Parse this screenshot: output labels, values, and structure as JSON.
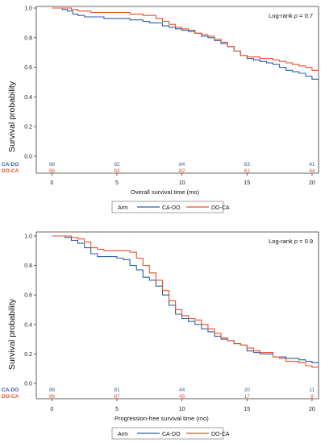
{
  "colors": {
    "ca_do": "#2e5fa8",
    "do_ca": "#e8502a"
  },
  "legend": {
    "title": "Arm",
    "items": [
      "CA-DO",
      "DO-CA"
    ]
  },
  "chart_data": [
    {
      "type": "line",
      "ylabel": "Survival probability",
      "xlabel": "Overall survival time (mo)",
      "annotation_prefix": "Log-rank",
      "annotation_p": "p",
      "annotation_value": " = 0.7",
      "xlim": [
        -1.2,
        20.5
      ],
      "ylim": [
        0,
        1.0
      ],
      "x_ticks": [
        "0",
        "5",
        "10",
        "15",
        "20"
      ],
      "x_tick_values": [
        0,
        5,
        10,
        15,
        20
      ],
      "y_ticks": [
        "0.0",
        "0.2",
        "0.4",
        "0.6",
        "0.8",
        "1.0"
      ],
      "y_tick_values": [
        0,
        0.2,
        0.4,
        0.6,
        0.8,
        1.0
      ],
      "risk_table": [
        {
          "label": "CA-DO",
          "values": [
            "98",
            "92",
            "84",
            "63",
            "41"
          ]
        },
        {
          "label": "DO-CA",
          "values": [
            "96",
            "93",
            "82",
            "61",
            "44"
          ]
        }
      ],
      "series": [
        {
          "name": "CA-DO",
          "x": [
            0,
            0.8,
            1.2,
            1.6,
            2.0,
            2.5,
            3.0,
            4.0,
            5.0,
            6.0,
            7.0,
            7.5,
            8.0,
            8.5,
            9.0,
            9.5,
            10.0,
            10.5,
            11.0,
            11.5,
            12.0,
            12.5,
            13.0,
            13.5,
            14.0,
            14.5,
            15.0,
            15.5,
            16.0,
            16.5,
            17.0,
            17.5,
            18.0,
            18.5,
            19.0,
            19.5,
            20.0,
            20.5
          ],
          "y": [
            1.0,
            0.99,
            0.98,
            0.96,
            0.95,
            0.94,
            0.94,
            0.93,
            0.93,
            0.92,
            0.91,
            0.9,
            0.9,
            0.88,
            0.87,
            0.86,
            0.85,
            0.85,
            0.83,
            0.81,
            0.8,
            0.78,
            0.76,
            0.74,
            0.71,
            0.68,
            0.66,
            0.65,
            0.64,
            0.63,
            0.62,
            0.6,
            0.58,
            0.57,
            0.56,
            0.54,
            0.52,
            0.51
          ]
        },
        {
          "name": "DO-CA",
          "x": [
            0,
            1.0,
            1.5,
            2.0,
            3.0,
            4.0,
            5.0,
            6.0,
            7.0,
            8.0,
            8.5,
            9.0,
            9.5,
            10.0,
            10.5,
            11.0,
            11.5,
            12.0,
            12.5,
            13.0,
            13.5,
            14.0,
            14.5,
            15.0,
            15.5,
            16.0,
            16.5,
            17.0,
            17.5,
            18.0,
            18.5,
            19.0,
            19.5,
            20.0,
            20.5
          ],
          "y": [
            1.0,
            1.0,
            0.99,
            0.98,
            0.97,
            0.97,
            0.97,
            0.96,
            0.95,
            0.93,
            0.91,
            0.89,
            0.87,
            0.86,
            0.84,
            0.83,
            0.82,
            0.81,
            0.79,
            0.77,
            0.74,
            0.71,
            0.68,
            0.67,
            0.67,
            0.66,
            0.66,
            0.65,
            0.64,
            0.63,
            0.62,
            0.61,
            0.6,
            0.58,
            0.56
          ]
        }
      ]
    },
    {
      "type": "line",
      "ylabel": "Survival probability",
      "xlabel": "Progression-free survival time (mo)",
      "annotation_prefix": "Log-rank",
      "annotation_p": "p",
      "annotation_value": " = 0.9",
      "xlim": [
        -1.2,
        20.5
      ],
      "ylim": [
        0,
        1.0
      ],
      "x_ticks": [
        "0",
        "5",
        "10",
        "15",
        "20"
      ],
      "x_tick_values": [
        0,
        5,
        10,
        15,
        20
      ],
      "y_ticks": [
        "0.0",
        "0.2",
        "0.4",
        "0.6",
        "0.8",
        "1.0"
      ],
      "y_tick_values": [
        0,
        0.2,
        0.4,
        0.6,
        0.8,
        1.0
      ],
      "risk_table": [
        {
          "label": "CA-DO",
          "values": [
            "98",
            "81",
            "44",
            "20",
            "11"
          ]
        },
        {
          "label": "DO-CA",
          "values": [
            "96",
            "87",
            "45",
            "17",
            "8"
          ]
        }
      ],
      "series": [
        {
          "name": "CA-DO",
          "x": [
            0,
            1.0,
            1.5,
            2.0,
            2.5,
            3.0,
            3.5,
            4.0,
            5.0,
            5.5,
            6.0,
            6.5,
            7.0,
            7.5,
            8.0,
            8.5,
            9.0,
            9.5,
            10.0,
            10.5,
            11.0,
            11.5,
            12.0,
            12.5,
            13.0,
            13.5,
            14.0,
            14.5,
            15.0,
            15.5,
            16.0,
            17.0,
            17.5,
            18.0,
            19.0,
            19.5,
            20.0,
            20.5
          ],
          "y": [
            1.0,
            0.99,
            0.97,
            0.95,
            0.92,
            0.88,
            0.86,
            0.86,
            0.85,
            0.84,
            0.8,
            0.77,
            0.72,
            0.7,
            0.66,
            0.6,
            0.53,
            0.47,
            0.44,
            0.42,
            0.4,
            0.37,
            0.35,
            0.32,
            0.3,
            0.29,
            0.27,
            0.26,
            0.22,
            0.21,
            0.2,
            0.18,
            0.18,
            0.17,
            0.16,
            0.15,
            0.14,
            0.13
          ]
        },
        {
          "name": "DO-CA",
          "x": [
            0,
            1.0,
            1.5,
            2.0,
            2.5,
            3.0,
            3.5,
            4.0,
            5.0,
            6.0,
            6.5,
            7.0,
            7.5,
            8.0,
            8.5,
            9.0,
            9.5,
            10.0,
            10.5,
            11.0,
            11.5,
            12.0,
            12.5,
            13.0,
            13.5,
            14.0,
            14.5,
            15.0,
            15.5,
            16.0,
            17.0,
            17.5,
            18.0,
            19.0,
            19.5,
            20.0,
            20.5
          ],
          "y": [
            1.0,
            1.0,
            0.99,
            0.98,
            0.96,
            0.92,
            0.91,
            0.9,
            0.9,
            0.89,
            0.85,
            0.8,
            0.75,
            0.7,
            0.63,
            0.56,
            0.5,
            0.46,
            0.44,
            0.43,
            0.4,
            0.37,
            0.34,
            0.31,
            0.29,
            0.27,
            0.26,
            0.24,
            0.22,
            0.21,
            0.18,
            0.17,
            0.15,
            0.14,
            0.12,
            0.11,
            0.1
          ]
        }
      ]
    }
  ]
}
